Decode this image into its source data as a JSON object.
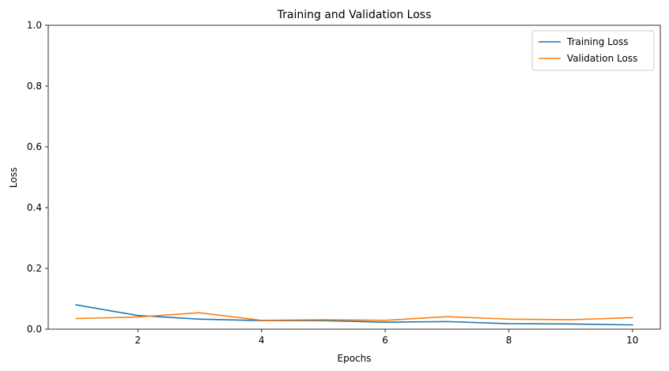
{
  "chart_data": {
    "type": "line",
    "title": "Training and Validation Loss",
    "xlabel": "Epochs",
    "ylabel": "Loss",
    "xlim": [
      0.55,
      10.45
    ],
    "ylim": [
      0,
      1
    ],
    "xticks": [
      2,
      4,
      6,
      8,
      10
    ],
    "yticks": [
      0.0,
      0.2,
      0.4,
      0.6,
      0.8,
      1.0
    ],
    "ytick_labels": [
      "0.0",
      "0.2",
      "0.4",
      "0.6",
      "0.8",
      "1.0"
    ],
    "grid": false,
    "legend_position": "top-right",
    "x": [
      1,
      2,
      3,
      4,
      5,
      6,
      7,
      8,
      9,
      10
    ],
    "series": [
      {
        "name": "Training Loss",
        "color": "#1f77b4",
        "values": [
          0.08,
          0.045,
          0.033,
          0.028,
          0.028,
          0.023,
          0.025,
          0.018,
          0.017,
          0.014
        ]
      },
      {
        "name": "Validation Loss",
        "color": "#ff7f0e",
        "values": [
          0.035,
          0.04,
          0.054,
          0.029,
          0.031,
          0.029,
          0.041,
          0.033,
          0.031,
          0.038
        ]
      }
    ]
  }
}
